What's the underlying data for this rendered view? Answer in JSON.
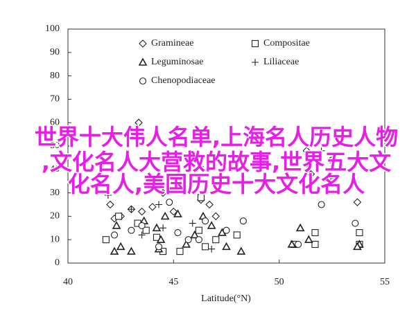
{
  "chart_data": {
    "type": "scatter",
    "xlabel": "Latitude(°N)",
    "xlim": [
      40,
      55
    ],
    "xticks": [
      40,
      45,
      50,
      55
    ],
    "ylim": [
      0,
      100
    ],
    "yticks": [
      0,
      10,
      20,
      30,
      40,
      50,
      60,
      70,
      80,
      90,
      100
    ],
    "series": [
      {
        "name": "Gramineae",
        "marker": "diamond",
        "color": "#222222",
        "x": [
          43.35,
          42,
          42.5,
          43,
          43.5,
          44,
          45,
          46.3,
          46.7,
          47,
          51.3,
          51.4,
          51.5,
          52.5,
          53.7,
          44.5,
          42.2
        ],
        "y": [
          60,
          25,
          20,
          23,
          22,
          24,
          22,
          27,
          25,
          20,
          48,
          42,
          38,
          35,
          26,
          30,
          19
        ]
      },
      {
        "name": "Compositae",
        "marker": "square",
        "color": "#222222",
        "x": [
          41.8,
          42.4,
          43.3,
          44.2,
          44.5,
          45.3,
          46.2,
          46.5,
          47,
          48,
          50.7,
          51.7,
          51.7,
          53.8,
          53.8,
          43.7,
          46.3
        ],
        "y": [
          10,
          20,
          17,
          11,
          5,
          5,
          14,
          7,
          10,
          12,
          8,
          13,
          8,
          13,
          8,
          14,
          28
        ]
      },
      {
        "name": "Leguminosae",
        "marker": "triangle",
        "color": "#222222",
        "x": [
          42.2,
          42.3,
          42.5,
          43,
          43.6,
          44.2,
          44.4,
          44.6,
          45.2,
          45.6,
          46,
          46.4,
          46.8,
          47.3,
          47.5,
          48.2,
          50.6,
          51,
          51.4,
          53.8,
          53.7,
          44.3
        ],
        "y": [
          5,
          16,
          7,
          5,
          18,
          15,
          10,
          20,
          21,
          8,
          12,
          20,
          16,
          13,
          7,
          5,
          8,
          15,
          10,
          8,
          7,
          6
        ]
      },
      {
        "name": "Liliaceae",
        "marker": "plus",
        "color": "#222222",
        "x": [
          41.9,
          43,
          43.5,
          44.5,
          45.9,
          46.8,
          46.4,
          52,
          44.3
        ],
        "y": [
          29,
          23,
          12,
          15,
          17,
          6,
          40,
          48,
          25
        ]
      },
      {
        "name": "Chenopodiaceae",
        "marker": "circle",
        "color": "#222222",
        "x": [
          42.2,
          43,
          43.5,
          44.3,
          45.2,
          45.7,
          46.2,
          46.5,
          47.5,
          48.3,
          50.9,
          52,
          53.6,
          52.5,
          44.8
        ],
        "y": [
          12,
          14,
          16,
          7,
          13,
          10,
          10,
          18,
          14,
          18,
          8,
          25,
          17,
          44,
          26
        ]
      }
    ],
    "overlay_text": [
      "世界十大伟人名单,上海名人历史人物",
      ",文化名人大营救的故事,世界五大文",
      "化名人,美国历史十大文化名人"
    ]
  }
}
